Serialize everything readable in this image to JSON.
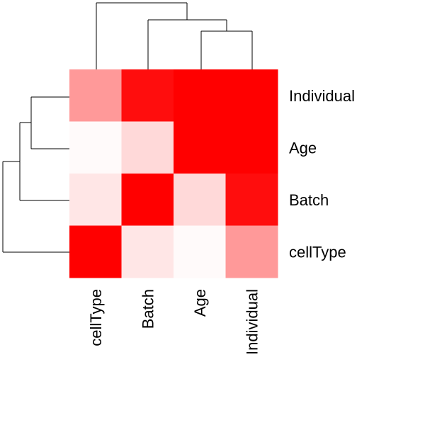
{
  "chart_data": {
    "type": "heatmap",
    "row_labels": [
      "Individual",
      "Age",
      "Batch",
      "cellType"
    ],
    "col_labels": [
      "cellType",
      "Batch",
      "Age",
      "Individual"
    ],
    "values": [
      [
        0.4,
        0.95,
        1.0,
        1.0
      ],
      [
        0.02,
        0.15,
        1.0,
        1.0
      ],
      [
        0.1,
        1.0,
        0.15,
        0.95
      ],
      [
        1.0,
        0.1,
        0.02,
        0.4
      ]
    ],
    "color_low": "#ffffff",
    "color_high": "#ff0000",
    "legend": "none",
    "row_dendrogram": true,
    "col_dendrogram": true
  }
}
